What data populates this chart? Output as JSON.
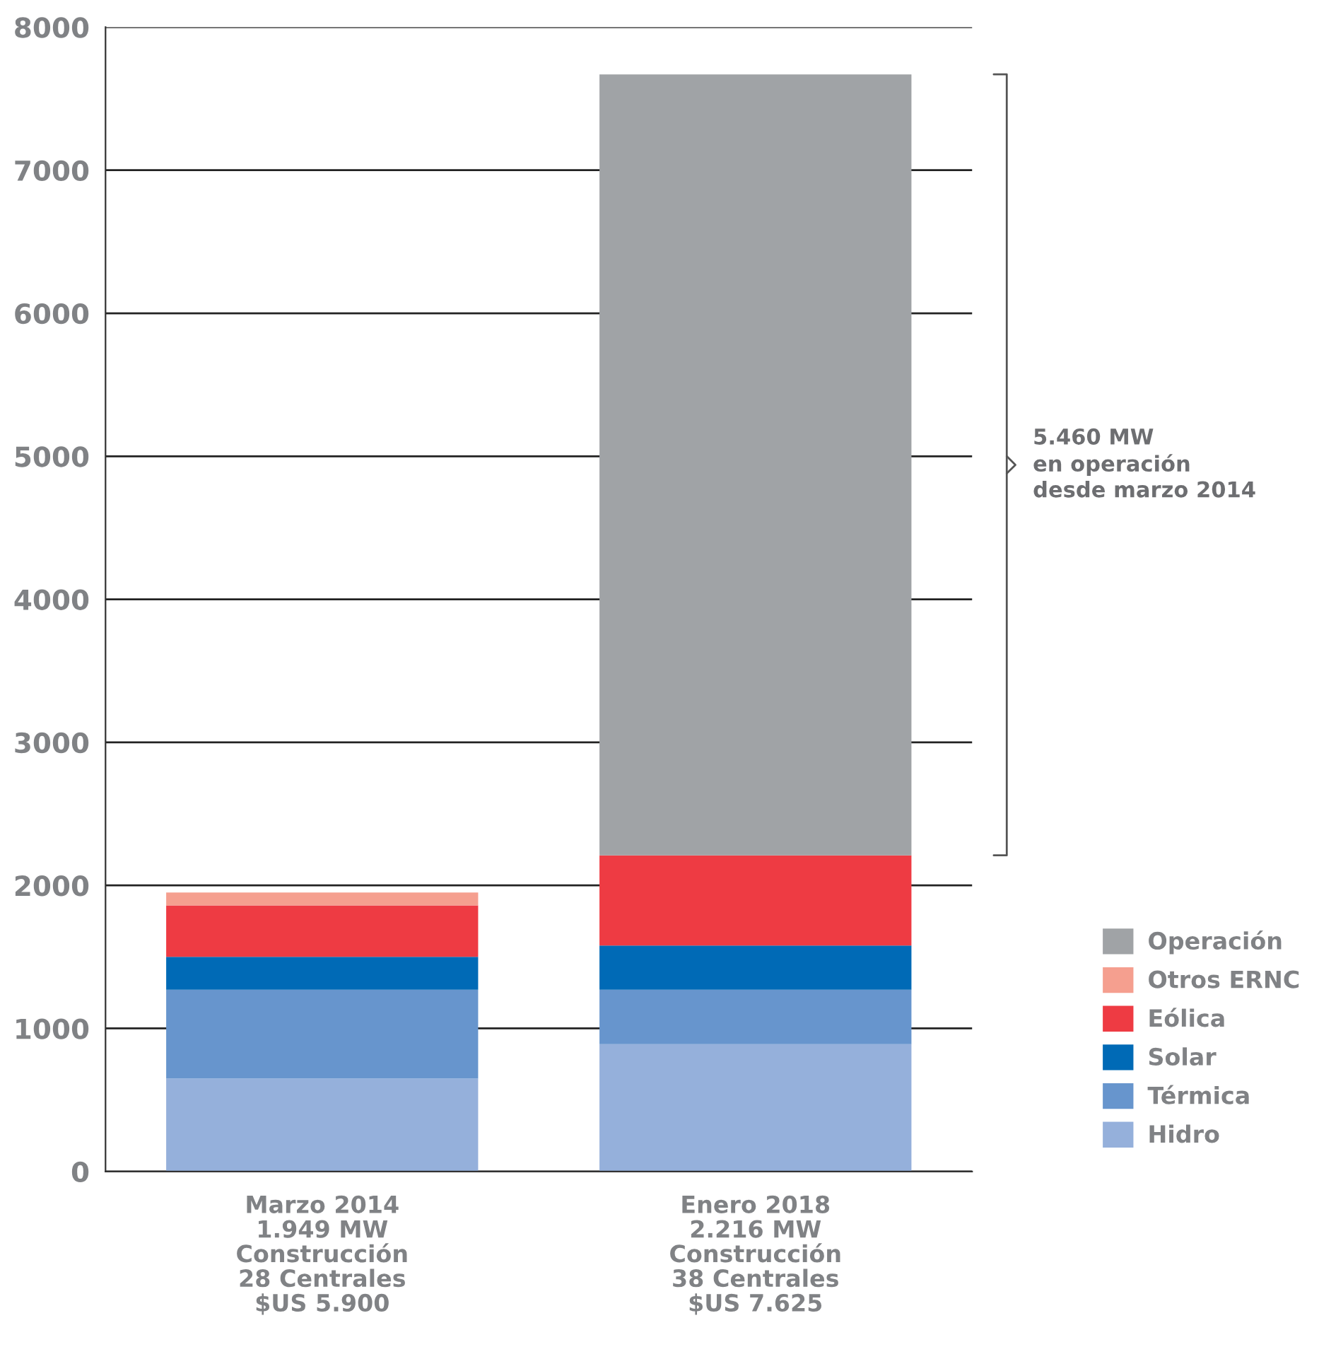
{
  "chart_data": {
    "type": "bar",
    "stacked": true,
    "categories": [
      "Marzo 2014\n1.949 MW\nConstrucción\n28 Centrales\n$US 5.900",
      "Enero 2018\n2.216 MW\nConstrucción\n38 Centrales\n$US 7.625"
    ],
    "series": [
      {
        "name": "Hidro",
        "color": "#95b0db",
        "values": [
          650,
          890
        ]
      },
      {
        "name": "Térmica",
        "color": "#6795cd",
        "values": [
          620,
          380
        ]
      },
      {
        "name": "Solar",
        "color": "#006ab6",
        "values": [
          230,
          310
        ]
      },
      {
        "name": "Eólica",
        "color": "#ee3b43",
        "values": [
          360,
          630
        ]
      },
      {
        "name": "Otros ERNC",
        "color": "#f59f8f",
        "values": [
          90,
          null
        ]
      },
      {
        "name": "Operación",
        "color": "#a0a3a6",
        "values": [
          null,
          5460
        ]
      }
    ],
    "ylim": [
      0,
      8000
    ],
    "yticks": [
      0,
      1000,
      2000,
      3000,
      4000,
      5000,
      6000,
      7000,
      8000
    ],
    "grid": "y",
    "legend": "bottom right",
    "annotations": [
      "5.460 MW\nen operación\ndesde marzo 2014"
    ]
  }
}
